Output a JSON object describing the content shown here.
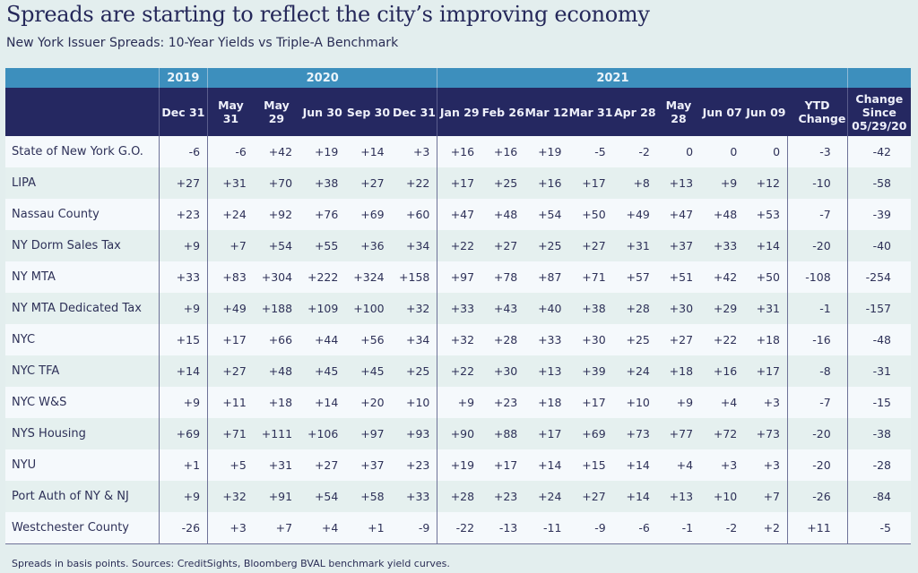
{
  "title": "Spreads are starting to reflect the city’s improving economy",
  "subtitle": "New York Issuer Spreads: 10-Year Yields vs Triple-A Benchmark",
  "footnote": "Spreads in basis points. Sources: CreditSights, Bloomberg BVAL benchmark yield curves.",
  "colors": {
    "year_header": "#3d8fbd",
    "column_header": "#252861",
    "row_light": "#f5f9fc",
    "row_alt": "#e5f0ef",
    "background": "#e3eeee"
  },
  "years": [
    "2019",
    "2020",
    "2021"
  ],
  "columns": [
    "Dec 31",
    "May 31",
    "May 29",
    "Jun 30",
    "Sep 30",
    "Dec 31",
    "Jan 29",
    "Feb 26",
    "Mar 12",
    "Mar 31",
    "Apr 28",
    "May 28",
    "Jun 07",
    "Jun 09",
    "YTD Change",
    "Change Since 05/29/20"
  ],
  "rows": [
    {
      "name": "State of New York G.O.",
      "values": [
        "-6",
        "-6",
        "+42",
        "+19",
        "+14",
        "+3",
        "+16",
        "+16",
        "+19",
        "-5",
        "-2",
        "0",
        "0",
        "0",
        "-3",
        "-42"
      ]
    },
    {
      "name": "LIPA",
      "values": [
        "+27",
        "+31",
        "+70",
        "+38",
        "+27",
        "+22",
        "+17",
        "+25",
        "+16",
        "+17",
        "+8",
        "+13",
        "+9",
        "+12",
        "-10",
        "-58"
      ]
    },
    {
      "name": "Nassau County",
      "values": [
        "+23",
        "+24",
        "+92",
        "+76",
        "+69",
        "+60",
        "+47",
        "+48",
        "+54",
        "+50",
        "+49",
        "+47",
        "+48",
        "+53",
        "-7",
        "-39"
      ]
    },
    {
      "name": "NY Dorm Sales Tax",
      "values": [
        "+9",
        "+7",
        "+54",
        "+55",
        "+36",
        "+34",
        "+22",
        "+27",
        "+25",
        "+27",
        "+31",
        "+37",
        "+33",
        "+14",
        "-20",
        "-40"
      ]
    },
    {
      "name": "NY MTA",
      "values": [
        "+33",
        "+83",
        "+304",
        "+222",
        "+324",
        "+158",
        "+97",
        "+78",
        "+87",
        "+71",
        "+57",
        "+51",
        "+42",
        "+50",
        "-108",
        "-254"
      ]
    },
    {
      "name": "NY MTA Dedicated Tax",
      "values": [
        "+9",
        "+49",
        "+188",
        "+109",
        "+100",
        "+32",
        "+33",
        "+43",
        "+40",
        "+38",
        "+28",
        "+30",
        "+29",
        "+31",
        "-1",
        "-157"
      ]
    },
    {
      "name": "NYC",
      "values": [
        "+15",
        "+17",
        "+66",
        "+44",
        "+56",
        "+34",
        "+32",
        "+28",
        "+33",
        "+30",
        "+25",
        "+27",
        "+22",
        "+18",
        "-16",
        "-48"
      ]
    },
    {
      "name": "NYC TFA",
      "values": [
        "+14",
        "+27",
        "+48",
        "+45",
        "+45",
        "+25",
        "+22",
        "+30",
        "+13",
        "+39",
        "+24",
        "+18",
        "+16",
        "+17",
        "-8",
        "-31"
      ]
    },
    {
      "name": "NYC W&S",
      "values": [
        "+9",
        "+11",
        "+18",
        "+14",
        "+20",
        "+10",
        "+9",
        "+23",
        "+18",
        "+17",
        "+10",
        "+9",
        "+4",
        "+3",
        "-7",
        "-15"
      ]
    },
    {
      "name": "NYS Housing",
      "values": [
        "+69",
        "+71",
        "+111",
        "+106",
        "+97",
        "+93",
        "+90",
        "+88",
        "+17",
        "+69",
        "+73",
        "+77",
        "+72",
        "+73",
        "-20",
        "-38"
      ]
    },
    {
      "name": "NYU",
      "values": [
        "+1",
        "+5",
        "+31",
        "+27",
        "+37",
        "+23",
        "+19",
        "+17",
        "+14",
        "+15",
        "+14",
        "+4",
        "+3",
        "+3",
        "-20",
        "-28"
      ]
    },
    {
      "name": "Port Auth of NY & NJ",
      "values": [
        "+9",
        "+32",
        "+91",
        "+54",
        "+58",
        "+33",
        "+28",
        "+23",
        "+24",
        "+27",
        "+14",
        "+13",
        "+10",
        "+7",
        "-26",
        "-84"
      ]
    },
    {
      "name": "Westchester County",
      "values": [
        "-26",
        "+3",
        "+7",
        "+4",
        "+1",
        "-9",
        "-22",
        "-13",
        "-11",
        "-9",
        "-6",
        "-1",
        "-2",
        "+2",
        "+11",
        "-5"
      ]
    }
  ]
}
